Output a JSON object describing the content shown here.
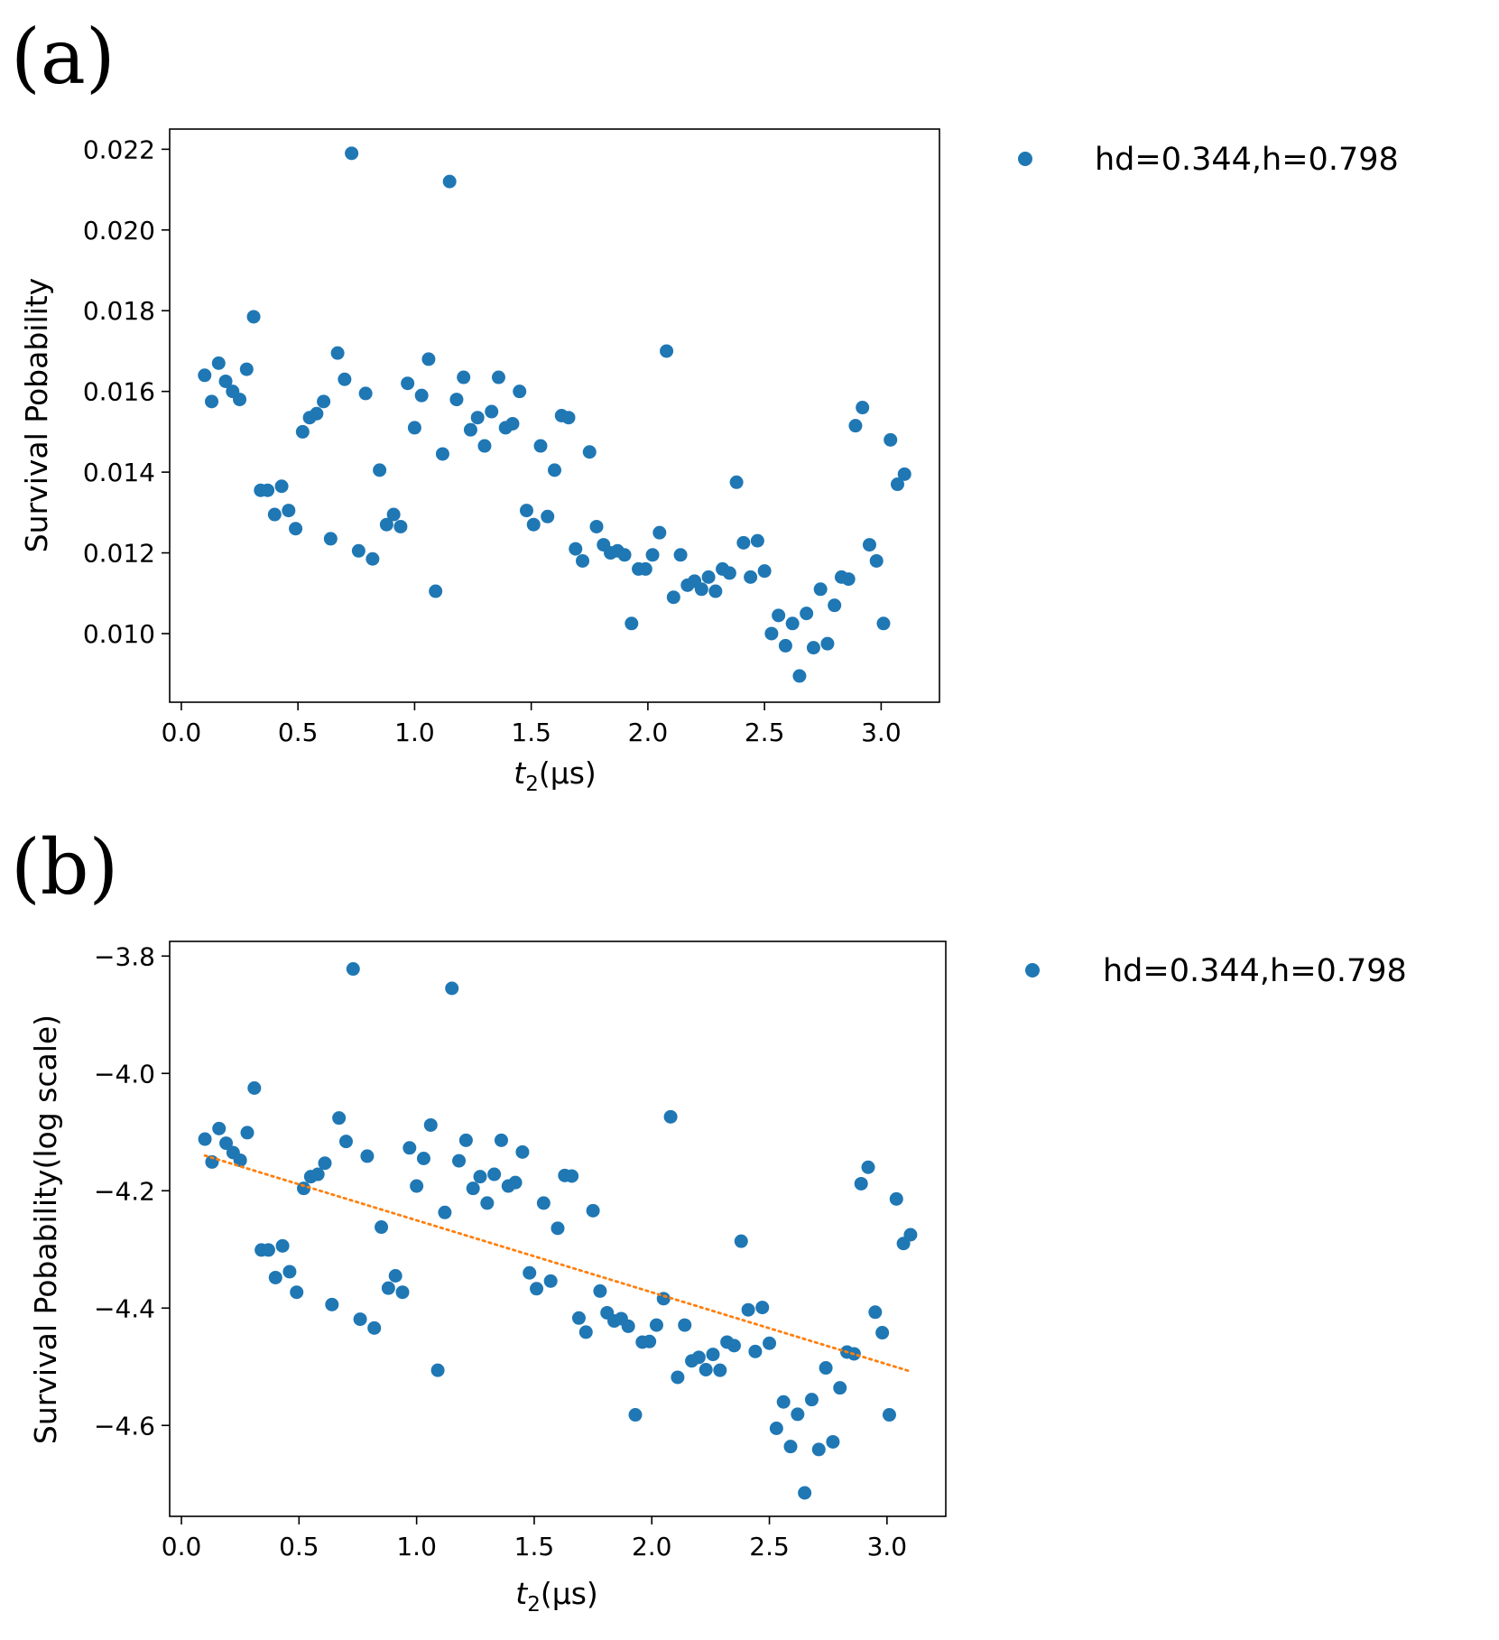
{
  "chart_data": [
    {
      "type": "scatter",
      "panel_label": "(a)",
      "xlabel_main": "t",
      "xlabel_sub": "2",
      "xlabel_rest": "(μs)",
      "ylabel": "Survival Pobability",
      "xlim": [
        -0.05,
        3.25
      ],
      "ylim": [
        0.0083,
        0.0225
      ],
      "xticks": [
        0.0,
        0.5,
        1.0,
        1.5,
        2.0,
        2.5,
        3.0
      ],
      "xtick_labels": [
        "0.0",
        "0.5",
        "1.0",
        "1.5",
        "2.0",
        "2.5",
        "3.0"
      ],
      "yticks": [
        0.01,
        0.012,
        0.014,
        0.016,
        0.018,
        0.02,
        0.022
      ],
      "ytick_labels": [
        "0.010",
        "0.012",
        "0.014",
        "0.016",
        "0.018",
        "0.020",
        "0.022"
      ],
      "legend": {
        "label": "hd=0.344,h=0.798",
        "position": "outside-right-top"
      },
      "series": [
        {
          "name": "hd=0.344,h=0.798",
          "color": "#1f77b4",
          "marker": "circle",
          "x": [
            0.1,
            0.13,
            0.16,
            0.19,
            0.22,
            0.25,
            0.28,
            0.31,
            0.34,
            0.37,
            0.4,
            0.43,
            0.46,
            0.49,
            0.52,
            0.55,
            0.58,
            0.61,
            0.64,
            0.67,
            0.7,
            0.73,
            0.76,
            0.79,
            0.82,
            0.85,
            0.88,
            0.91,
            0.94,
            0.97,
            1.0,
            1.03,
            1.06,
            1.09,
            1.12,
            1.15,
            1.18,
            1.21,
            1.24,
            1.27,
            1.3,
            1.33,
            1.36,
            1.39,
            1.42,
            1.45,
            1.48,
            1.51,
            1.54,
            1.57,
            1.6,
            1.63,
            1.66,
            1.69,
            1.72,
            1.75,
            1.78,
            1.81,
            1.84,
            1.87,
            1.9,
            1.93,
            1.96,
            1.99,
            2.02,
            2.05,
            2.08,
            2.11,
            2.14,
            2.17,
            2.2,
            2.23,
            2.26,
            2.29,
            2.32,
            2.35,
            2.38,
            2.41,
            2.44,
            2.47,
            2.5,
            2.53,
            2.56,
            2.59,
            2.62,
            2.65,
            2.68,
            2.71,
            2.74,
            2.77,
            2.8,
            2.83,
            2.86,
            2.89,
            2.92,
            2.95,
            2.98,
            3.01,
            3.04,
            3.07,
            3.1
          ],
          "y": [
            0.0164,
            0.01575,
            0.0167,
            0.01625,
            0.016,
            0.0158,
            0.01655,
            0.01785,
            0.01355,
            0.01355,
            0.01295,
            0.01365,
            0.01305,
            0.0126,
            0.015,
            0.01535,
            0.01545,
            0.01575,
            0.01235,
            0.01695,
            0.0163,
            0.0219,
            0.01205,
            0.01595,
            0.01185,
            0.01405,
            0.0127,
            0.01295,
            0.01265,
            0.0162,
            0.0151,
            0.0159,
            0.0168,
            0.01105,
            0.01445,
            0.0212,
            0.0158,
            0.01635,
            0.01505,
            0.01535,
            0.01465,
            0.0155,
            0.01635,
            0.0151,
            0.0152,
            0.016,
            0.01305,
            0.0127,
            0.01465,
            0.0129,
            0.01405,
            0.0154,
            0.01535,
            0.0121,
            0.0118,
            0.0145,
            0.01265,
            0.0122,
            0.012,
            0.01205,
            0.01195,
            0.01025,
            0.0116,
            0.0116,
            0.01195,
            0.0125,
            0.017,
            0.0109,
            0.01195,
            0.0112,
            0.0113,
            0.0111,
            0.0114,
            0.01105,
            0.0116,
            0.0115,
            0.01375,
            0.01225,
            0.0114,
            0.0123,
            0.01155,
            0.01,
            0.01045,
            0.0097,
            0.01025,
            0.00895,
            0.0105,
            0.00965,
            0.0111,
            0.00975,
            0.0107,
            0.0114,
            0.01135,
            0.01515,
            0.0156,
            0.0122,
            0.0118,
            0.01025,
            0.0148,
            0.0137,
            0.01395
          ]
        }
      ]
    },
    {
      "type": "scatter",
      "panel_label": "(b)",
      "xlabel_main": "t",
      "xlabel_sub": "2",
      "xlabel_rest": "(μs)",
      "ylabel": "Survival Pobability(log scale)",
      "xlim": [
        -0.05,
        3.25
      ],
      "ylim": [
        -4.755,
        -3.775
      ],
      "xticks": [
        0.0,
        0.5,
        1.0,
        1.5,
        2.0,
        2.5,
        3.0
      ],
      "xtick_labels": [
        "0.0",
        "0.5",
        "1.0",
        "1.5",
        "2.0",
        "2.5",
        "3.0"
      ],
      "yticks": [
        -4.6,
        -4.4,
        -4.2,
        -4.0,
        -3.8
      ],
      "ytick_labels": [
        "−4.6",
        "−4.4",
        "−4.2",
        "−4.0",
        "−3.8"
      ],
      "legend": {
        "label": "hd=0.344,h=0.798",
        "position": "outside-right-top"
      },
      "series": [
        {
          "name": "hd=0.344,h=0.798",
          "color": "#1f77b4",
          "marker": "circle",
          "x": [
            0.1,
            0.13,
            0.16,
            0.19,
            0.22,
            0.25,
            0.28,
            0.31,
            0.34,
            0.37,
            0.4,
            0.43,
            0.46,
            0.49,
            0.52,
            0.55,
            0.58,
            0.61,
            0.64,
            0.67,
            0.7,
            0.73,
            0.76,
            0.79,
            0.82,
            0.85,
            0.88,
            0.91,
            0.94,
            0.97,
            1.0,
            1.03,
            1.06,
            1.09,
            1.12,
            1.15,
            1.18,
            1.21,
            1.24,
            1.27,
            1.3,
            1.33,
            1.36,
            1.39,
            1.42,
            1.45,
            1.48,
            1.51,
            1.54,
            1.57,
            1.6,
            1.63,
            1.66,
            1.69,
            1.72,
            1.75,
            1.78,
            1.81,
            1.84,
            1.87,
            1.9,
            1.93,
            1.96,
            1.99,
            2.02,
            2.05,
            2.08,
            2.11,
            2.14,
            2.17,
            2.2,
            2.23,
            2.26,
            2.29,
            2.32,
            2.35,
            2.38,
            2.41,
            2.44,
            2.47,
            2.5,
            2.53,
            2.56,
            2.59,
            2.62,
            2.65,
            2.68,
            2.71,
            2.74,
            2.77,
            2.8,
            2.83,
            2.86,
            2.89,
            2.92,
            2.95,
            2.98,
            3.01,
            3.04,
            3.07,
            3.1
          ],
          "y": [
            -4.112,
            -4.151,
            -4.094,
            -4.119,
            -4.135,
            -4.148,
            -4.101,
            -4.025,
            -4.301,
            -4.301,
            -4.348,
            -4.294,
            -4.338,
            -4.373,
            -4.196,
            -4.176,
            -4.172,
            -4.153,
            -4.394,
            -4.076,
            -4.116,
            -3.822,
            -4.419,
            -4.141,
            -4.434,
            -4.262,
            -4.366,
            -4.345,
            -4.373,
            -4.127,
            -4.192,
            -4.145,
            -4.088,
            -4.506,
            -4.237,
            -3.855,
            -4.149,
            -4.114,
            -4.196,
            -4.176,
            -4.221,
            -4.172,
            -4.114,
            -4.192,
            -4.186,
            -4.134,
            -4.34,
            -4.367,
            -4.221,
            -4.354,
            -4.264,
            -4.174,
            -4.175,
            -4.417,
            -4.441,
            -4.234,
            -4.371,
            -4.408,
            -4.422,
            -4.418,
            -4.431,
            -4.582,
            -4.458,
            -4.457,
            -4.429,
            -4.384,
            -4.074,
            -4.518,
            -4.429,
            -4.49,
            -4.484,
            -4.505,
            -4.479,
            -4.506,
            -4.458,
            -4.464,
            -4.286,
            -4.403,
            -4.474,
            -4.399,
            -4.46,
            -4.605,
            -4.56,
            -4.636,
            -4.581,
            -4.715,
            -4.556,
            -4.641,
            -4.502,
            -4.628,
            -4.536,
            -4.475,
            -4.478,
            -4.188,
            -4.16,
            -4.407,
            -4.442,
            -4.582,
            -4.214,
            -4.29,
            -4.275
          ]
        },
        {
          "name": "fit",
          "type": "line",
          "style": "dotted",
          "color": "#ff7f0e",
          "x": [
            0.1,
            3.1
          ],
          "y": [
            -4.14,
            -4.508
          ]
        }
      ]
    }
  ]
}
